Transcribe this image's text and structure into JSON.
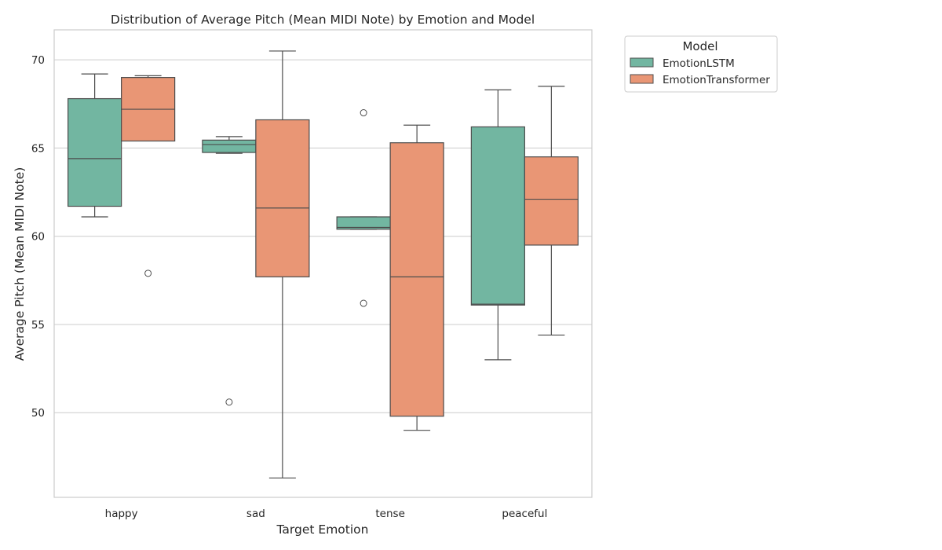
{
  "chart_data": {
    "type": "boxplot",
    "title": "Distribution of Average Pitch (Mean MIDI Note) by Emotion and Model",
    "xlabel": "Target Emotion",
    "ylabel": "Average Pitch (Mean MIDI Note)",
    "ylim": [
      45.2,
      71.7
    ],
    "yticks": [
      50,
      55,
      60,
      65,
      70
    ],
    "grid": "horizontal",
    "legend_position": "outside-top-right",
    "legend_title": "Model",
    "categories": [
      "happy",
      "sad",
      "tense",
      "peaceful"
    ],
    "series": [
      {
        "name": "EmotionLSTM",
        "color": "#72b6a1",
        "boxes": [
          {
            "whisker_low": 61.1,
            "q1": 61.7,
            "median": 64.4,
            "q3": 67.8,
            "whisker_high": 69.2,
            "outliers": []
          },
          {
            "whisker_low": 64.7,
            "q1": 64.75,
            "median": 65.2,
            "q3": 65.45,
            "whisker_high": 65.65,
            "outliers": [
              50.6
            ]
          },
          {
            "whisker_low": 60.4,
            "q1": 60.4,
            "median": 60.5,
            "q3": 61.1,
            "whisker_high": 61.1,
            "outliers": [
              67.0,
              56.2
            ]
          },
          {
            "whisker_low": 53.0,
            "q1": 56.1,
            "median": 56.15,
            "q3": 66.2,
            "whisker_high": 68.3,
            "outliers": []
          }
        ]
      },
      {
        "name": "EmotionTransformer",
        "color": "#e99675",
        "boxes": [
          {
            "whisker_low": 65.4,
            "q1": 65.4,
            "median": 67.2,
            "q3": 69.0,
            "whisker_high": 69.1,
            "outliers": [
              57.9
            ]
          },
          {
            "whisker_low": 46.3,
            "q1": 57.7,
            "median": 61.6,
            "q3": 66.6,
            "whisker_high": 70.5,
            "outliers": []
          },
          {
            "whisker_low": 49.0,
            "q1": 49.8,
            "median": 57.7,
            "q3": 65.3,
            "whisker_high": 66.3,
            "outliers": []
          },
          {
            "whisker_low": 54.4,
            "q1": 59.5,
            "median": 62.1,
            "q3": 64.5,
            "whisker_high": 68.5,
            "outliers": []
          }
        ]
      }
    ]
  }
}
